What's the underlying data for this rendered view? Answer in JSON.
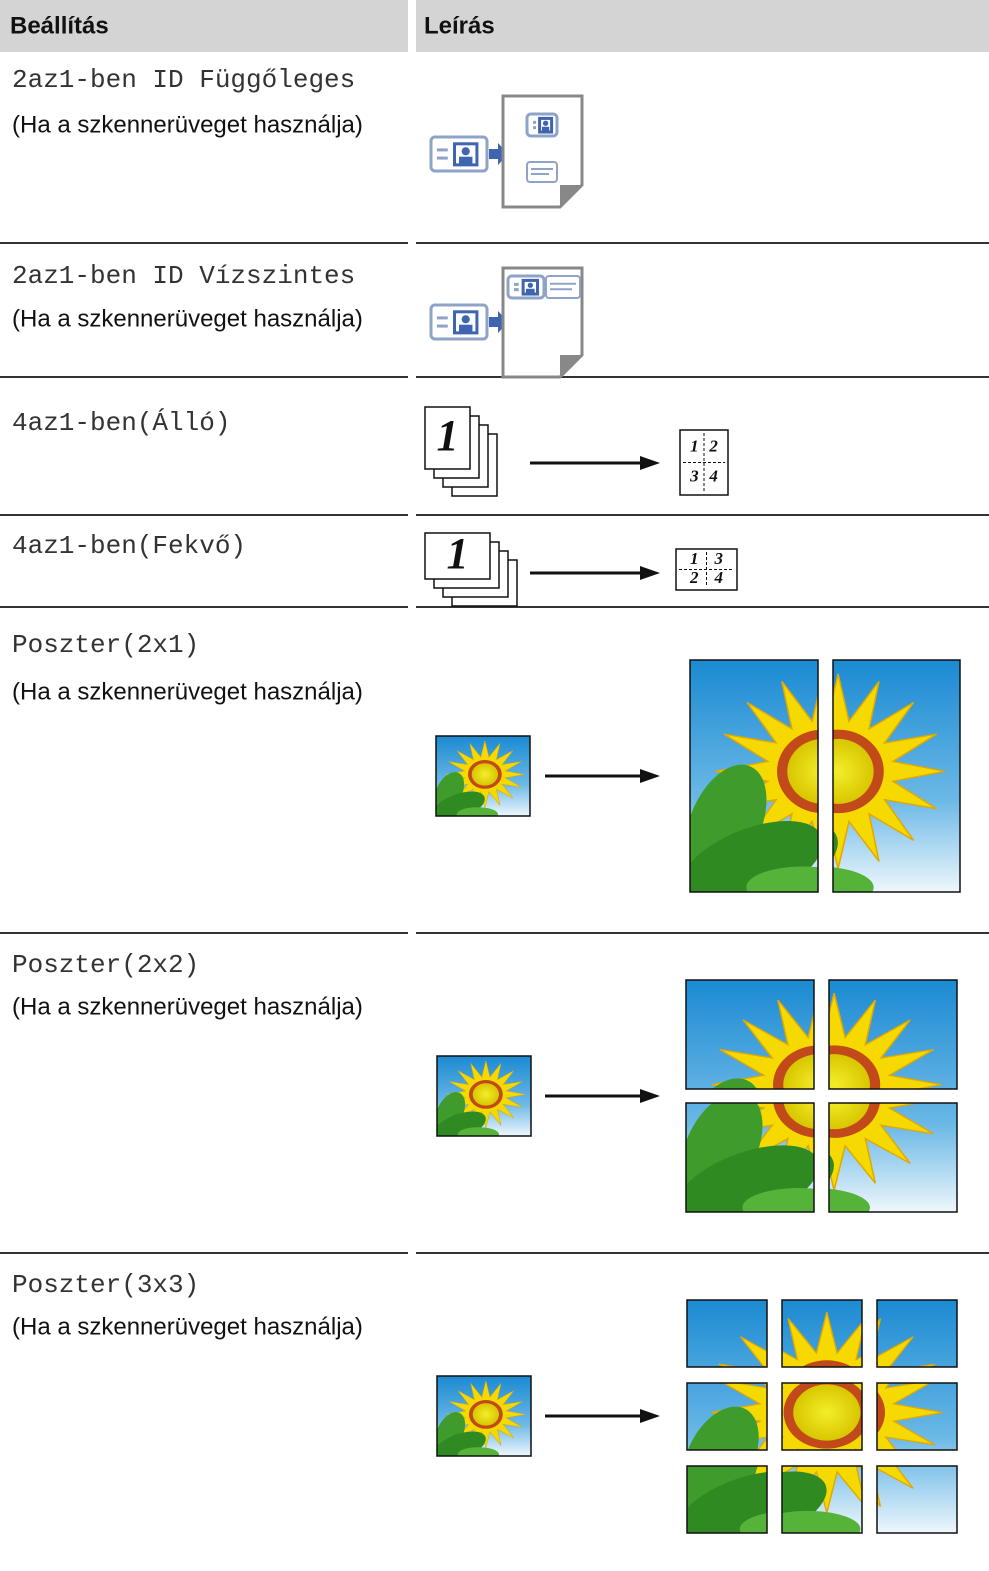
{
  "header": {
    "col1": "Beállítás",
    "col2": "Leírás"
  },
  "rows": [
    {
      "setting": "2az1-ben ID Függőleges",
      "note": "(Ha a szkennerüveget használja)"
    },
    {
      "setting": "2az1-ben ID Vízszintes",
      "note": "(Ha a szkennerüveget használja)"
    },
    {
      "setting": "4az1-ben(Álló)",
      "illustration": {
        "source": "1",
        "result": [
          "1",
          "2",
          "3",
          "4"
        ]
      }
    },
    {
      "setting": "4az1-ben(Fekvő)",
      "illustration": {
        "source": "1",
        "result": [
          "1",
          "3",
          "2",
          "4"
        ]
      }
    },
    {
      "setting": "Poszter(2x1)",
      "note": "(Ha a szkennerüveget használja)"
    },
    {
      "setting": "Poszter(2x2)",
      "note": "(Ha a szkennerüveget használja)"
    },
    {
      "setting": "Poszter(3x3)",
      "note": "(Ha a szkennerüveget használja)"
    }
  ]
}
